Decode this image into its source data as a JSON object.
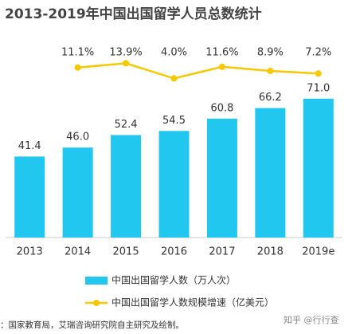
{
  "chart_data": {
    "type": "bar-line",
    "title": "2013-2019年中国出国留学人员总数统计",
    "categories": [
      "2013",
      "2014",
      "2015",
      "2016",
      "2017",
      "2018",
      "2019e"
    ],
    "series": [
      {
        "name": "中国出国留学人数（万人次）",
        "type": "bar",
        "color": "#22c7f0",
        "values": [
          41.4,
          46.0,
          52.4,
          54.5,
          60.8,
          66.2,
          71.0
        ],
        "value_labels": [
          "41.4",
          "46.0",
          "52.4",
          "54.5",
          "60.8",
          "66.2",
          "71.0"
        ]
      },
      {
        "name": "中国出国留学人数规模增速（亿美元）",
        "type": "line",
        "axis": "y2",
        "color": "#f5c800",
        "values": [
          null,
          11.1,
          13.9,
          4.0,
          11.6,
          8.9,
          7.2
        ],
        "value_labels": [
          null,
          "11.1%",
          "13.9%",
          "4.0%",
          "11.6%",
          "8.9%",
          "7.2%"
        ]
      }
    ],
    "ylim": [
      0,
      97
    ],
    "y2lim": [
      -100,
      24
    ],
    "source": "：国家教育局，艾瑞咨询研究院自主研究及绘制。",
    "watermark": "知乎 @行行查"
  }
}
